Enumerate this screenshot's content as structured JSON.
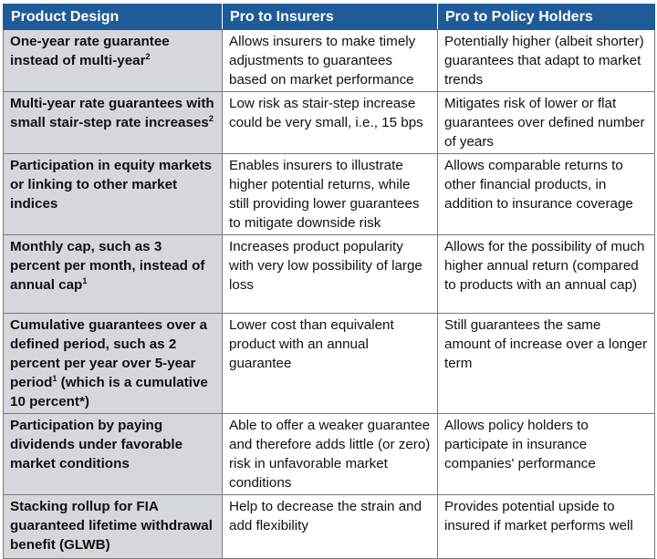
{
  "headers": [
    "Product Design",
    "Pro to Insurers",
    "Pro to Policy Holders"
  ],
  "rows": [
    {
      "design": "One-year rate guarantee instead of multi-year",
      "design_sup": "2",
      "insurers": "Allows insurers to make timely adjustments to guarantees based on market performance",
      "holders": "Potentially higher (albeit shorter) guarantees that adapt to market trends"
    },
    {
      "design": "Multi-year rate guarantees with small stair-step rate increases",
      "design_sup": "2",
      "insurers": "Low risk as stair-step increase could be very small, i.e., 15 bps",
      "holders": "Mitigates risk of lower or flat guarantees over defined number of years"
    },
    {
      "design": "Participation in equity markets or linking to other market indices",
      "insurers": "Enables insurers to illustrate higher potential returns, while still providing lower guarantees to mitigate downside risk",
      "holders": "Allows comparable returns to other financial products, in addition to insurance coverage"
    },
    {
      "design": "Monthly cap, such as 3 percent per month, instead of annual cap",
      "design_sup": "1",
      "insurers": "Increases product popularity with very low possibility of large loss",
      "holders": "Allows for the possibility of much higher annual return (compared to products with an annual cap)"
    },
    {
      "design": "Cumulative guarantees over a defined period, such as 2 percent per year over 5-year period",
      "design_sup": "1",
      "design_tail": " (which is a cumulative 10 percent*)",
      "insurers": "Lower cost than equivalent product with an annual guarantee",
      "holders": "Still guarantees the same amount of increase over a longer term"
    },
    {
      "design": "Participation by paying dividends under favorable market conditions",
      "insurers": "Able to offer a weaker guarantee and therefore adds little (or zero) risk in unfavorable market conditions",
      "holders": "Allows policy holders to participate in insurance companies' performance"
    },
    {
      "design": "Stacking rollup for FIA guaranteed lifetime withdrawal benefit (GLWB)",
      "insurers": "Help to decrease the strain and add flexibility",
      "holders": "Provides potential upside to insured if market performs well"
    }
  ]
}
